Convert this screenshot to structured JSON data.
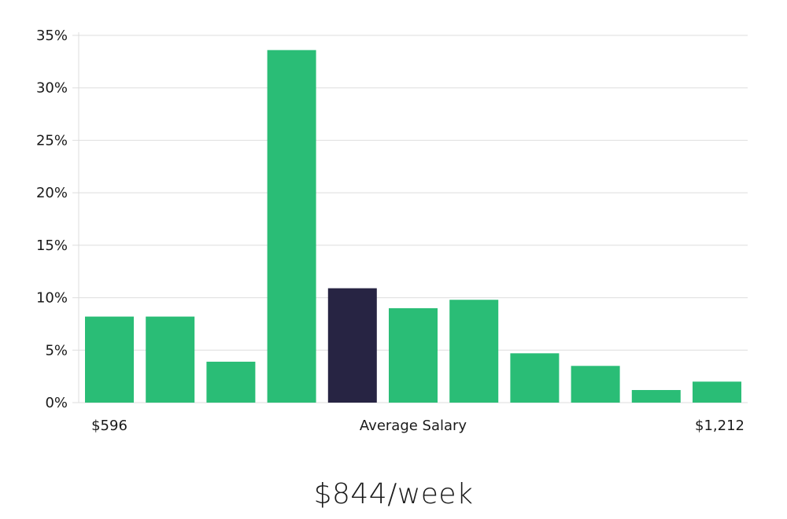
{
  "chart_data": {
    "type": "bar",
    "title": "",
    "xlabel": "Average Salary",
    "ylabel": "",
    "ylim": [
      0,
      35
    ],
    "yticks": [
      0,
      5,
      10,
      15,
      20,
      25,
      30,
      35
    ],
    "ytick_labels": [
      "0%",
      "5%",
      "10%",
      "15%",
      "20%",
      "25%",
      "30%",
      "35%"
    ],
    "grid": true,
    "x_range_labels": {
      "min": "$596",
      "center": "Average Salary",
      "max": "$1,212"
    },
    "values": [
      8.2,
      8.2,
      3.9,
      33.6,
      10.9,
      9.0,
      9.8,
      4.7,
      3.5,
      1.2,
      2.0
    ],
    "highlight_index": 4,
    "bar_color": "#2abd76",
    "highlight_color": "#272443"
  },
  "caption": "$844/week"
}
